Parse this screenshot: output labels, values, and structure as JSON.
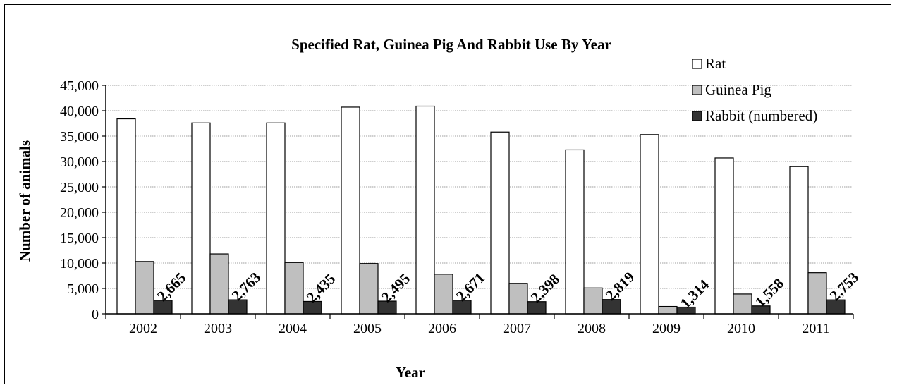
{
  "chart_data": {
    "type": "bar",
    "title": "Specified Rat, Guinea Pig And Rabbit Use By Year",
    "xlabel": "Year",
    "ylabel": "Number of animals",
    "categories": [
      "2002",
      "2003",
      "2004",
      "2005",
      "2006",
      "2007",
      "2008",
      "2009",
      "2010",
      "2011"
    ],
    "series": [
      {
        "name": "Rat",
        "color": "#ffffff",
        "values": [
          38400,
          37600,
          37600,
          40700,
          40900,
          35800,
          32300,
          35300,
          30700,
          29000
        ]
      },
      {
        "name": "Guinea Pig",
        "color": "#bfbfbf",
        "values": [
          10300,
          11800,
          10100,
          9900,
          7800,
          6000,
          5100,
          1450,
          3900,
          8100
        ]
      },
      {
        "name": "Rabbit (numbered)",
        "color": "#333333",
        "values": [
          2665,
          2763,
          2435,
          2495,
          2671,
          2398,
          2819,
          1314,
          1558,
          2753
        ]
      }
    ],
    "data_labels": [
      "2,665",
      "2,763",
      "2,435",
      "2,495",
      "2,671",
      "2,398",
      "2,819",
      "1,314",
      "1,558",
      "2,753"
    ],
    "y_ticks": [
      "0",
      "5,000",
      "10,000",
      "15,000",
      "20,000",
      "25,000",
      "30,000",
      "35,000",
      "40,000",
      "45,000"
    ],
    "ylim": [
      0,
      45000
    ],
    "y_step": 5000,
    "grid": true,
    "legend_position": "top-right"
  }
}
